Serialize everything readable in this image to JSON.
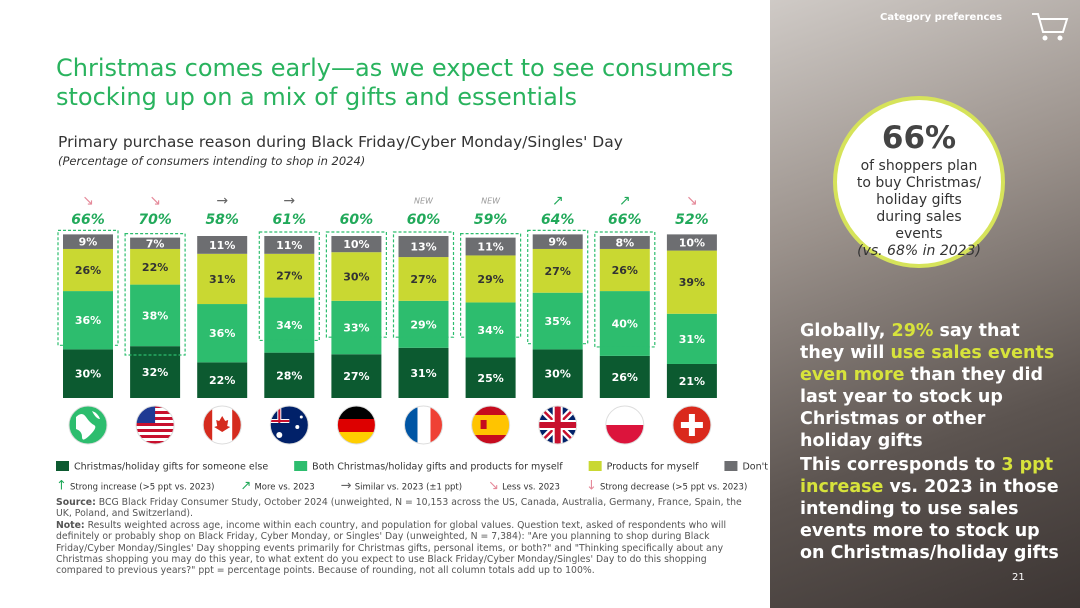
{
  "header": {
    "section": "Category preferences",
    "page": "21"
  },
  "title": "Christmas comes early—as we expect to see consumers stocking up on a mix of gifts and essentials",
  "chart_data": {
    "type": "stacked_bar",
    "title": "Primary purchase reason during Black Friday/Cyber Monday/Singles' Day",
    "subtitle": "(Percentage of consumers intending to shop in 2024)",
    "categories": [
      null,
      null,
      null,
      null,
      null,
      null,
      null,
      null,
      null,
      null
    ],
    "series": [
      {
        "name": "Christmas/holiday gifts for someone else",
        "color": "#0c5a30",
        "values": [
          30,
          32,
          22,
          28,
          27,
          31,
          25,
          30,
          26,
          21
        ],
        "value_labels": [
          "30%",
          "32%",
          "22%",
          "28%",
          "27%",
          "31%",
          "25%",
          "30%",
          "26%",
          "21%"
        ]
      },
      {
        "name": "Both Christmas/holiday gifts and products for myself",
        "color": "#2dbd6e",
        "values": [
          36,
          38,
          36,
          34,
          33,
          29,
          34,
          35,
          40,
          31
        ],
        "value_labels": [
          "36%",
          "38%",
          "36%",
          "34%",
          "33%",
          "29%",
          "34%",
          "35%",
          "40%",
          "31%"
        ]
      },
      {
        "name": "Products for myself",
        "color": "#c9d832",
        "values": [
          26,
          22,
          31,
          27,
          30,
          27,
          29,
          27,
          26,
          39
        ],
        "value_labels": [
          "26%",
          "22%",
          "31%",
          "27%",
          "30%",
          "27%",
          "29%",
          "27%",
          "26%",
          "39%"
        ]
      },
      {
        "name": "Don't know yet",
        "color": "#6d6e71",
        "values": [
          9,
          7,
          11,
          11,
          10,
          13,
          11,
          9,
          8,
          10
        ],
        "value_labels": [
          "9%",
          "7%",
          "11%",
          "11%",
          "10%",
          "13%",
          "11%",
          "9%",
          "8%",
          "10%"
        ]
      }
    ],
    "totals": {
      "values": [
        66,
        70,
        58,
        61,
        60,
        60,
        59,
        64,
        66,
        52
      ],
      "value_labels": [
        "66%",
        "70%",
        "58%",
        "61%",
        "60%",
        "60%",
        "59%",
        "64%",
        "66%",
        "52%"
      ],
      "color": "#21a95a"
    },
    "trends": [
      "↘",
      "↘",
      "→",
      "→",
      null,
      "NEW",
      "NEW",
      "↗",
      "↗",
      "↘"
    ],
    "highlight": [
      true,
      true,
      false,
      true,
      true,
      true,
      true,
      true,
      true,
      false
    ],
    "legend": "bottom",
    "trend_legend": [
      {
        "symbol": "↑",
        "label": "Strong increase (>5 ppt vs. 2023)"
      },
      {
        "symbol": "↗",
        "label": "More vs. 2023"
      },
      {
        "symbol": "→",
        "label": "Similar vs. 2023 (±1 ppt)"
      },
      {
        "symbol": "↘",
        "label": "Less vs. 2023"
      },
      {
        "symbol": "↓",
        "label": "Strong decrease (>5 ppt vs. 2023)"
      }
    ]
  },
  "source": {
    "label": "Source:",
    "text": "BCG Black Friday Consumer Study, October 2024 (unweighted, N = 10,153 across the US, Canada, Australia, Germany, France, Spain, the UK, Poland, and Switzerland)."
  },
  "note": {
    "label": "Note:",
    "text": "Results weighted across age, income within each country, and population for global values. Question text, asked of respondents who will definitely or probably shop on Black Friday, Cyber Monday, or Singles' Day (unweighted, N = 7,384): \"Are you planning to shop during Black Friday/Cyber Monday/Singles' Day shopping events primarily for Christmas gifts, personal items, or both?\" and \"Thinking specifically about any Christmas shopping you may do this year, to what extent do you expect to use Black Friday/Cyber Monday/Singles' Day to do this shopping compared to previous years?\" ppt = percentage points. Because of rounding, not all column totals add up to 100%."
  },
  "callout": {
    "value": "66%",
    "text": "of shoppers plan to buy Christmas/ holiday gifts during sales events",
    "note": "(vs. 68% in 2023)"
  },
  "highlights": [
    [
      {
        "text": "Globally, ",
        "hl": false
      },
      {
        "text": "29%",
        "hl": true
      },
      {
        "text": " say that they will ",
        "hl": false
      },
      {
        "text": "use sales events even more",
        "hl": true
      },
      {
        "text": " than they did last year to stock up Christmas or other holiday gifts",
        "hl": false
      }
    ],
    [
      {
        "text": "This corresponds to ",
        "hl": false
      },
      {
        "text": "3 ppt increase",
        "hl": true
      },
      {
        "text": " vs. 2023 in those intending to use sales events more to stock up on Christmas/holiday gifts",
        "hl": false
      }
    ]
  ]
}
